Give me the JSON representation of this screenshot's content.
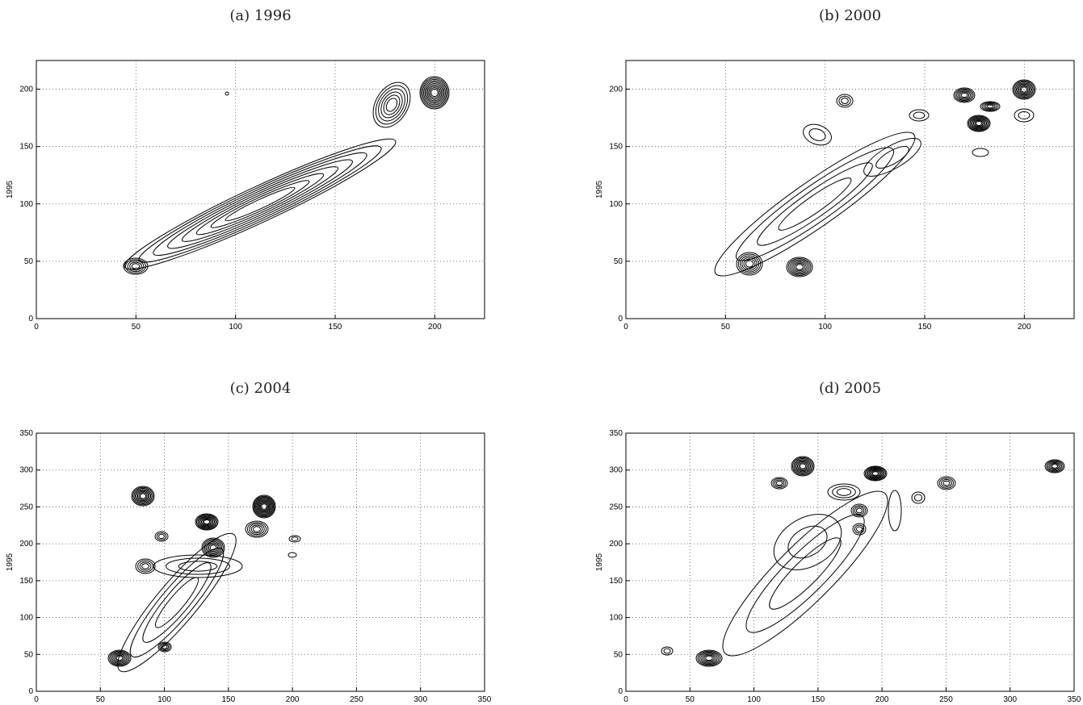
{
  "chart_data": [
    {
      "type": "contour",
      "title": "(a) 1996",
      "ylabel": "1995",
      "xlim": [
        0,
        225
      ],
      "ylim": [
        0,
        225
      ],
      "xticks": [
        0,
        50,
        100,
        150,
        200
      ],
      "yticks": [
        0,
        50,
        100,
        150,
        200
      ],
      "grid": true
    },
    {
      "type": "contour",
      "title": "(b) 2000",
      "ylabel": "1995",
      "xlim": [
        0,
        225
      ],
      "ylim": [
        0,
        225
      ],
      "xticks": [
        0,
        50,
        100,
        150,
        200
      ],
      "yticks": [
        0,
        50,
        100,
        150,
        200
      ],
      "grid": true
    },
    {
      "type": "contour",
      "title": "(c) 2004",
      "ylabel": "1995",
      "xlim": [
        0,
        350
      ],
      "ylim": [
        0,
        350
      ],
      "xticks": [
        0,
        50,
        100,
        150,
        200,
        250,
        300,
        350
      ],
      "yticks": [
        0,
        50,
        100,
        150,
        200,
        250,
        300,
        350
      ],
      "grid": true
    },
    {
      "type": "contour",
      "title": "(d) 2005",
      "ylabel": "1995",
      "xlim": [
        0,
        350
      ],
      "ylim": [
        0,
        350
      ],
      "xticks": [
        0,
        50,
        100,
        150,
        200,
        250,
        300,
        350
      ],
      "yticks": [
        0,
        50,
        100,
        150,
        200,
        250,
        300,
        350
      ],
      "grid": true
    }
  ]
}
